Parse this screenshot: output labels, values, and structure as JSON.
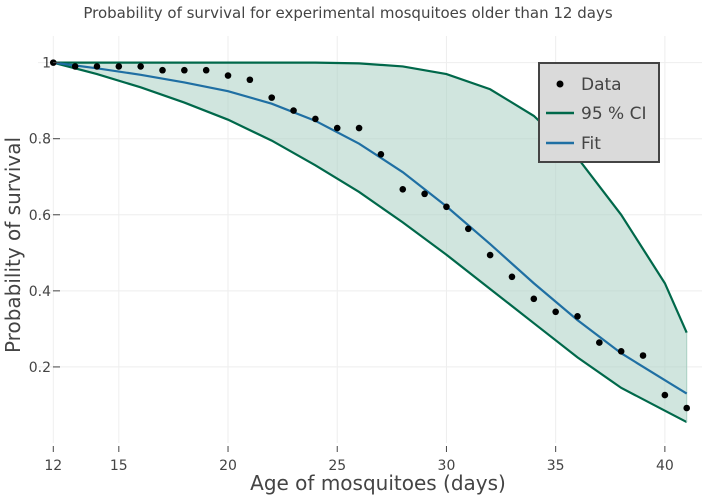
{
  "chart_data": {
    "type": "line",
    "title": "Probability of survival for experimental mosquitoes older than 12 days",
    "xlabel": "Age of mosquitoes (days)",
    "ylabel": "Probability of survival",
    "xlim": [
      11.3,
      41.7
    ],
    "ylim": [
      0.0,
      1.07
    ],
    "xticks": [
      12,
      15,
      20,
      25,
      30,
      35,
      40
    ],
    "yticks": [
      0.2,
      0.4,
      0.6,
      0.8,
      1
    ],
    "ytick_labels": [
      "0.2",
      "0.4",
      "0.6",
      "0.8",
      "1"
    ],
    "grid": true,
    "legend": {
      "position": "top-right",
      "entries": [
        "Data",
        "95 % CI",
        "Fit"
      ]
    },
    "colors": {
      "data": "#000000",
      "ci": "#00684a",
      "ci_fill": "#a9cfc3",
      "fit": "#1f6fa3",
      "legend_bg": "#dadada"
    },
    "series": [
      {
        "name": "Data",
        "kind": "points",
        "x": [
          12,
          13,
          14,
          15,
          16,
          17,
          18,
          19,
          20,
          21,
          22,
          23,
          24,
          25,
          26,
          27,
          28,
          29,
          30,
          31,
          32,
          33,
          34,
          35,
          36,
          37,
          38,
          39,
          40,
          41
        ],
        "y": [
          1.0,
          0.99,
          0.99,
          0.99,
          0.99,
          0.98,
          0.98,
          0.98,
          0.966,
          0.955,
          0.908,
          0.874,
          0.852,
          0.828,
          0.828,
          0.759,
          0.667,
          0.655,
          0.621,
          0.563,
          0.494,
          0.437,
          0.379,
          0.345,
          0.333,
          0.264,
          0.241,
          0.23,
          0.126,
          0.092
        ]
      },
      {
        "name": "Fit",
        "kind": "line",
        "x": [
          12,
          14,
          16,
          18,
          20,
          22,
          24,
          26,
          28,
          30,
          32,
          34,
          36,
          38,
          40,
          41
        ],
        "y": [
          1.0,
          0.985,
          0.968,
          0.948,
          0.925,
          0.892,
          0.847,
          0.787,
          0.712,
          0.622,
          0.523,
          0.42,
          0.323,
          0.236,
          0.165,
          0.13
        ]
      },
      {
        "name": "95 % CI",
        "kind": "band",
        "x": [
          12,
          14,
          16,
          18,
          20,
          22,
          24,
          26,
          28,
          30,
          32,
          34,
          36,
          38,
          40,
          41
        ],
        "upper": [
          1.0,
          1.0,
          1.0,
          1.0,
          1.0,
          1.0,
          1.0,
          0.998,
          0.99,
          0.97,
          0.93,
          0.86,
          0.75,
          0.6,
          0.42,
          0.29
        ],
        "lower": [
          1.0,
          0.97,
          0.935,
          0.895,
          0.85,
          0.795,
          0.73,
          0.66,
          0.58,
          0.495,
          0.405,
          0.315,
          0.225,
          0.145,
          0.085,
          0.055
        ]
      }
    ]
  }
}
